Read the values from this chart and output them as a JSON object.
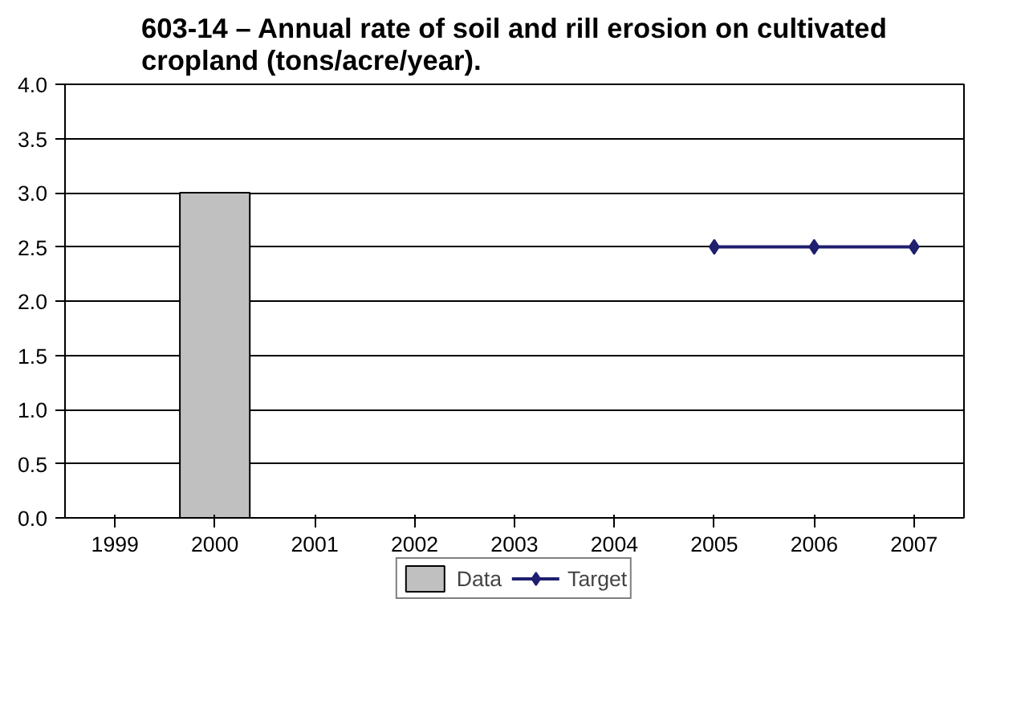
{
  "chart_data": {
    "type": "bar",
    "title": "603-14 – Annual rate of soil and rill erosion on cultivated cropland (tons/acre/year).",
    "categories": [
      "1999",
      "2000",
      "2001",
      "2002",
      "2003",
      "2004",
      "2005",
      "2006",
      "2007"
    ],
    "series": [
      {
        "name": "Data",
        "color": "#c0c0c0",
        "values": [
          null,
          3.0,
          null,
          null,
          null,
          null,
          null,
          null,
          null
        ]
      },
      {
        "name": "Target",
        "type": "line",
        "color": "#1f1f6f",
        "marker": "diamond",
        "values": [
          null,
          null,
          null,
          null,
          null,
          null,
          2.5,
          2.5,
          2.5
        ]
      }
    ],
    "ylim": [
      0,
      4
    ],
    "yticks": [
      {
        "value": 0,
        "label": "0.0"
      },
      {
        "value": 0.5,
        "label": "0.5"
      },
      {
        "value": 1,
        "label": "1.0"
      },
      {
        "value": 1.5,
        "label": "1.5"
      },
      {
        "value": 2,
        "label": "2.0"
      },
      {
        "value": 2.5,
        "label": "2.5"
      },
      {
        "value": 3,
        "label": "3.0"
      },
      {
        "value": 3.5,
        "label": "3.5"
      },
      {
        "value": 4,
        "label": "4.0"
      }
    ],
    "grid": "y",
    "legend": "bottom"
  }
}
